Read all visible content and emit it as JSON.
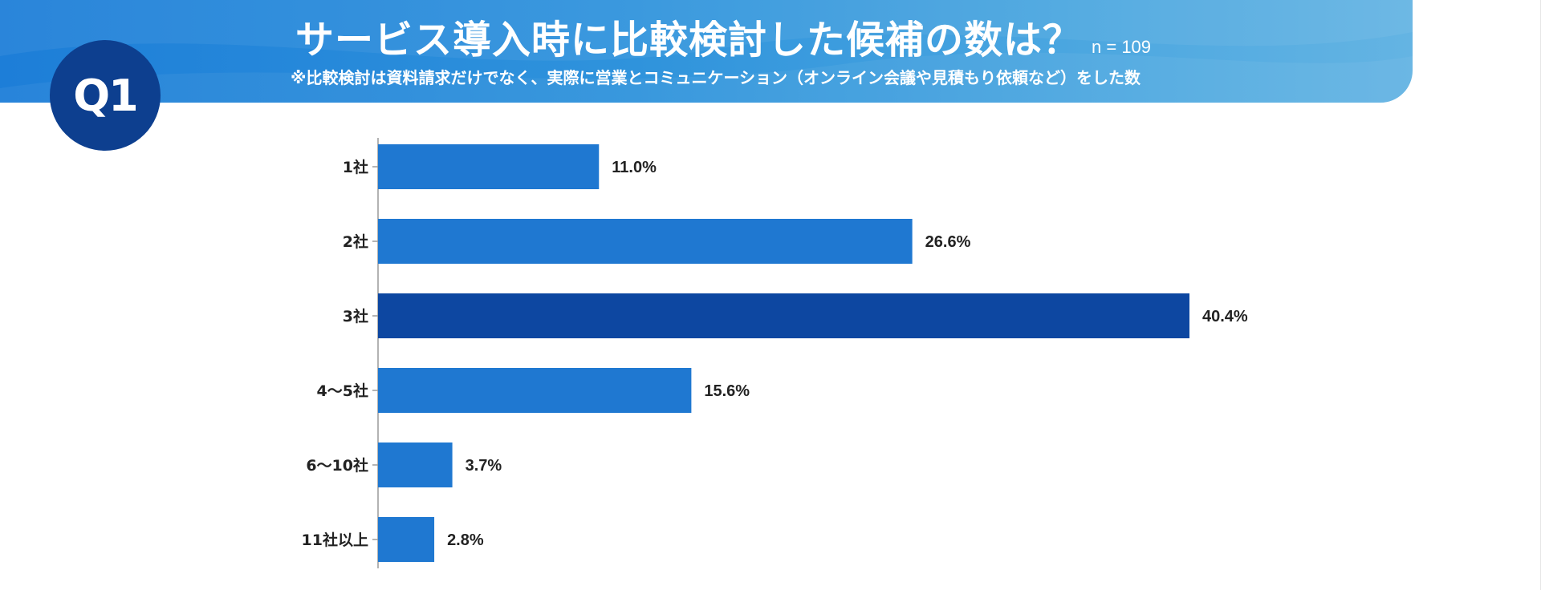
{
  "badge": "Q1",
  "title": "サービス導入時に比較検討した候補の数は？",
  "n_label": "n = 109",
  "subtitle": "※比較検討は資料請求だけでなく、実際に営業とコミュニケーション（オンライン会議や見積もり依頼など）をした数",
  "colors": {
    "bar": "#1f78d1",
    "bar_highlight": "#0d47a1",
    "badge": "#0d3f8f",
    "banner_start": "#1d7ed8",
    "banner_end": "#64b4e3"
  },
  "chart_data": {
    "type": "bar",
    "orientation": "horizontal",
    "title": "サービス導入時に比較検討した候補の数は？",
    "categories": [
      "1社",
      "2社",
      "3社",
      "4〜5社",
      "6〜10社",
      "11社以上"
    ],
    "values": [
      11.0,
      26.6,
      40.4,
      15.6,
      3.7,
      2.8
    ],
    "value_labels": [
      "11.0%",
      "26.6%",
      "40.4%",
      "15.6%",
      "3.7%",
      "2.8%"
    ],
    "highlight_index": 2,
    "xlim": [
      0,
      40.4
    ],
    "grid": false,
    "legend": "none"
  }
}
